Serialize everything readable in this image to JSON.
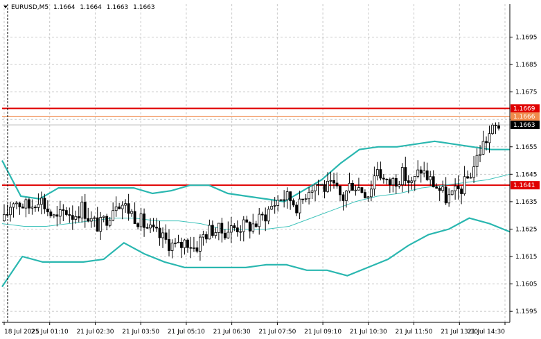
{
  "header": {
    "symbol": "EURUSD,M5",
    "open": "1.1664",
    "high": "1.1664",
    "low": "1.1663",
    "close": "1.1663"
  },
  "chart_data": {
    "type": "candlestick",
    "title": "EURUSD,M5 1.1664 1.1664 1.1663 1.1663",
    "ylim": [
      1.1591,
      1.1707
    ],
    "y_ticks": [
      "1.1695",
      "1.1685",
      "1.1675",
      "1.1665",
      "1.1655",
      "1.1645",
      "1.1635",
      "1.1625",
      "1.1615",
      "1.1605",
      "1.1595"
    ],
    "x_ticks": [
      "18 Jul 2025",
      "21 Jul 01:10",
      "21 Jul 02:30",
      "21 Jul 03:50",
      "21 Jul 05:10",
      "21 Jul 06:30",
      "21 Jul 07:50",
      "21 Jul 09:10",
      "21 Jul 10:30",
      "21 Jul 11:50",
      "21 Jul 13:10",
      "21 Jul 14:30"
    ],
    "grid": true,
    "levels": [
      {
        "label": "1.1669",
        "value": 1.1669,
        "color": "#e00000"
      },
      {
        "label": "1.1666",
        "value": 1.1666,
        "color": "#f08a4b"
      },
      {
        "label": "1.1641",
        "value": 1.1641,
        "color": "#e00000"
      }
    ],
    "bid_label": "1.1663",
    "bid_value": 1.1663,
    "close_path": [
      [
        0,
        1.1628
      ],
      [
        1,
        1.1636
      ],
      [
        2,
        1.1634
      ],
      [
        3,
        1.1633
      ],
      [
        4,
        1.1637
      ],
      [
        5,
        1.1632
      ],
      [
        6,
        1.1628
      ],
      [
        7,
        1.1632
      ],
      [
        8,
        1.163
      ],
      [
        9,
        1.1633
      ],
      [
        10,
        1.1628
      ],
      [
        11,
        1.1626
      ],
      [
        12,
        1.163
      ],
      [
        13,
        1.1636
      ],
      [
        14,
        1.1633
      ],
      [
        15,
        1.163
      ],
      [
        16,
        1.1627
      ],
      [
        17,
        1.1624
      ],
      [
        18,
        1.1622
      ],
      [
        19,
        1.162
      ],
      [
        20,
        1.1618
      ],
      [
        21,
        1.1621
      ],
      [
        22,
        1.1618
      ],
      [
        23,
        1.1623
      ],
      [
        24,
        1.1625
      ],
      [
        25,
        1.1624
      ],
      [
        26,
        1.1625
      ],
      [
        27,
        1.1626
      ],
      [
        28,
        1.1626
      ],
      [
        29,
        1.1627
      ],
      [
        30,
        1.163
      ],
      [
        31,
        1.1634
      ],
      [
        32,
        1.1637
      ],
      [
        33,
        1.1636
      ],
      [
        34,
        1.1633
      ],
      [
        35,
        1.164
      ],
      [
        36,
        1.1642
      ],
      [
        37,
        1.164
      ],
      [
        38,
        1.164
      ],
      [
        39,
        1.1636
      ],
      [
        40,
        1.1642
      ],
      [
        41,
        1.164
      ],
      [
        42,
        1.1638
      ],
      [
        43,
        1.1648
      ],
      [
        44,
        1.1641
      ],
      [
        45,
        1.1643
      ],
      [
        46,
        1.1645
      ],
      [
        47,
        1.1641
      ],
      [
        48,
        1.1647
      ],
      [
        49,
        1.1643
      ],
      [
        50,
        1.164
      ],
      [
        51,
        1.1636
      ],
      [
        52,
        1.1638
      ],
      [
        53,
        1.1641
      ],
      [
        54,
        1.1647
      ],
      [
        55,
        1.1655
      ],
      [
        56,
        1.166
      ],
      [
        57,
        1.1663
      ]
    ],
    "bb_upper": [
      [
        0,
        1.165
      ],
      [
        1,
        1.1637
      ],
      [
        2,
        1.1636
      ],
      [
        3,
        1.164
      ],
      [
        4,
        1.164
      ],
      [
        5,
        1.164
      ],
      [
        6,
        1.164
      ],
      [
        7,
        1.164
      ],
      [
        8,
        1.1638
      ],
      [
        9,
        1.1639
      ],
      [
        10,
        1.1641
      ],
      [
        11,
        1.1641
      ],
      [
        12,
        1.1638
      ],
      [
        13,
        1.1637
      ],
      [
        14,
        1.1636
      ],
      [
        15,
        1.1635
      ],
      [
        16,
        1.1639
      ],
      [
        17,
        1.1643
      ],
      [
        18,
        1.1649
      ],
      [
        19,
        1.1654
      ],
      [
        20,
        1.1655
      ],
      [
        21,
        1.1655
      ],
      [
        22,
        1.1656
      ],
      [
        23,
        1.1657
      ],
      [
        24,
        1.1656
      ],
      [
        25,
        1.1655
      ],
      [
        26,
        1.1654
      ],
      [
        27,
        1.1654
      ]
    ],
    "bb_middle": [
      [
        0,
        1.1627
      ],
      [
        1,
        1.1626
      ],
      [
        2,
        1.1626
      ],
      [
        3,
        1.1627
      ],
      [
        4,
        1.1628
      ],
      [
        5,
        1.1629
      ],
      [
        6,
        1.1629
      ],
      [
        7,
        1.1628
      ],
      [
        8,
        1.1628
      ],
      [
        9,
        1.1627
      ],
      [
        10,
        1.1625
      ],
      [
        11,
        1.1625
      ],
      [
        12,
        1.1625
      ],
      [
        13,
        1.1626
      ],
      [
        14,
        1.1629
      ],
      [
        15,
        1.1632
      ],
      [
        16,
        1.1635
      ],
      [
        17,
        1.1637
      ],
      [
        18,
        1.1638
      ],
      [
        19,
        1.164
      ],
      [
        20,
        1.1641
      ],
      [
        21,
        1.1642
      ],
      [
        22,
        1.1643
      ],
      [
        23,
        1.1645
      ]
    ],
    "bb_lower": [
      [
        0,
        1.1604
      ],
      [
        1,
        1.1615
      ],
      [
        2,
        1.1613
      ],
      [
        3,
        1.1613
      ],
      [
        4,
        1.1613
      ],
      [
        5,
        1.1614
      ],
      [
        6,
        1.162
      ],
      [
        7,
        1.1616
      ],
      [
        8,
        1.1613
      ],
      [
        9,
        1.1611
      ],
      [
        10,
        1.1611
      ],
      [
        11,
        1.1611
      ],
      [
        12,
        1.1611
      ],
      [
        13,
        1.1612
      ],
      [
        14,
        1.1612
      ],
      [
        15,
        1.161
      ],
      [
        16,
        1.161
      ],
      [
        17,
        1.1608
      ],
      [
        18,
        1.1611
      ],
      [
        19,
        1.1614
      ],
      [
        20,
        1.1619
      ],
      [
        21,
        1.1623
      ],
      [
        22,
        1.1625
      ],
      [
        23,
        1.1629
      ],
      [
        24,
        1.1627
      ],
      [
        25,
        1.1624
      ]
    ],
    "series_colors": {
      "bands": "#2ab7b0",
      "middle": "#3fc3bb",
      "bull": "#000000",
      "bear": "#000000",
      "grid": "#c8c8c8",
      "bid_line": "#b8b8b8",
      "axis": "#000000"
    }
  }
}
